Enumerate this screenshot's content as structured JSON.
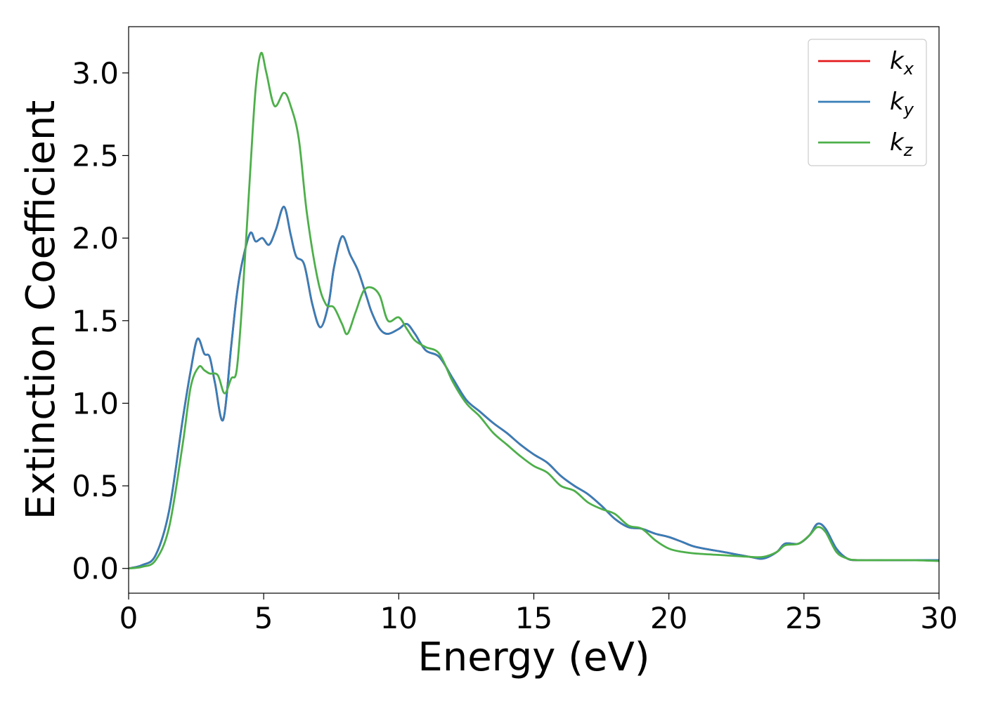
{
  "chart_data": {
    "type": "line",
    "xlabel": "Energy (eV)",
    "ylabel": "Extinction Coefficient",
    "xlim": [
      0,
      30
    ],
    "ylim": [
      -0.15,
      3.28
    ],
    "xticks": [
      0,
      5,
      10,
      15,
      20,
      25,
      30
    ],
    "xtick_labels": [
      "0",
      "5",
      "10",
      "15",
      "20",
      "25",
      "30"
    ],
    "yticks": [
      0.0,
      0.5,
      1.0,
      1.5,
      2.0,
      2.5,
      3.0
    ],
    "ytick_labels": [
      "0.0",
      "0.5",
      "1.0",
      "1.5",
      "2.0",
      "2.5",
      "3.0"
    ],
    "grid": false,
    "legend_position": "top-right",
    "series": [
      {
        "name": "k",
        "subscript": "x",
        "color": "#e41a1c",
        "x": [
          0,
          0.5,
          1.0,
          1.5,
          2.0,
          2.3,
          2.55,
          2.8,
          3.0,
          3.2,
          3.5,
          3.8,
          4.0,
          4.2,
          4.5,
          4.7,
          4.95,
          5.2,
          5.45,
          5.75,
          6.0,
          6.2,
          6.5,
          6.8,
          7.1,
          7.4,
          7.6,
          7.9,
          8.2,
          8.5,
          8.8,
          9.0,
          9.3,
          9.6,
          10.0,
          10.3,
          10.6,
          11.0,
          11.5,
          12.0,
          12.5,
          13.0,
          13.5,
          14.0,
          14.5,
          15.0,
          15.5,
          16.0,
          16.5,
          17.0,
          17.5,
          18.0,
          18.5,
          19.0,
          19.5,
          20.0,
          20.5,
          21.0,
          22.0,
          23.0,
          23.5,
          24.0,
          24.3,
          24.8,
          25.2,
          25.5,
          25.8,
          26.2,
          26.6,
          27.0,
          28.0,
          29.0,
          30.0
        ],
        "y": [
          0.0,
          0.02,
          0.08,
          0.35,
          0.9,
          1.2,
          1.39,
          1.3,
          1.28,
          1.12,
          0.9,
          1.35,
          1.65,
          1.85,
          2.03,
          1.98,
          2.0,
          1.96,
          2.05,
          2.19,
          2.02,
          1.89,
          1.84,
          1.6,
          1.46,
          1.6,
          1.82,
          2.01,
          1.9,
          1.8,
          1.65,
          1.55,
          1.45,
          1.42,
          1.45,
          1.48,
          1.42,
          1.32,
          1.28,
          1.15,
          1.02,
          0.95,
          0.88,
          0.82,
          0.75,
          0.69,
          0.64,
          0.56,
          0.5,
          0.45,
          0.38,
          0.3,
          0.25,
          0.24,
          0.21,
          0.19,
          0.16,
          0.13,
          0.1,
          0.07,
          0.06,
          0.1,
          0.15,
          0.15,
          0.2,
          0.27,
          0.24,
          0.12,
          0.06,
          0.05,
          0.05,
          0.05,
          0.05
        ]
      },
      {
        "name": "k",
        "subscript": "y",
        "color": "#377eb8",
        "x": [
          0,
          0.5,
          1.0,
          1.5,
          2.0,
          2.3,
          2.55,
          2.8,
          3.0,
          3.2,
          3.5,
          3.8,
          4.0,
          4.2,
          4.5,
          4.7,
          4.95,
          5.2,
          5.45,
          5.75,
          6.0,
          6.2,
          6.5,
          6.8,
          7.1,
          7.4,
          7.6,
          7.9,
          8.2,
          8.5,
          8.8,
          9.0,
          9.3,
          9.6,
          10.0,
          10.3,
          10.6,
          11.0,
          11.5,
          12.0,
          12.5,
          13.0,
          13.5,
          14.0,
          14.5,
          15.0,
          15.5,
          16.0,
          16.5,
          17.0,
          17.5,
          18.0,
          18.5,
          19.0,
          19.5,
          20.0,
          20.5,
          21.0,
          22.0,
          23.0,
          23.5,
          24.0,
          24.3,
          24.8,
          25.2,
          25.5,
          25.8,
          26.2,
          26.6,
          27.0,
          28.0,
          29.0,
          30.0
        ],
        "y": [
          0.0,
          0.02,
          0.08,
          0.35,
          0.9,
          1.2,
          1.39,
          1.3,
          1.28,
          1.12,
          0.9,
          1.35,
          1.65,
          1.85,
          2.03,
          1.98,
          2.0,
          1.96,
          2.05,
          2.19,
          2.02,
          1.89,
          1.84,
          1.6,
          1.46,
          1.6,
          1.82,
          2.01,
          1.9,
          1.8,
          1.65,
          1.55,
          1.45,
          1.42,
          1.45,
          1.48,
          1.42,
          1.32,
          1.28,
          1.15,
          1.02,
          0.95,
          0.88,
          0.82,
          0.75,
          0.69,
          0.64,
          0.56,
          0.5,
          0.45,
          0.38,
          0.3,
          0.25,
          0.24,
          0.21,
          0.19,
          0.16,
          0.13,
          0.1,
          0.07,
          0.06,
          0.1,
          0.15,
          0.15,
          0.2,
          0.27,
          0.24,
          0.12,
          0.06,
          0.05,
          0.05,
          0.05,
          0.05
        ]
      },
      {
        "name": "k",
        "subscript": "z",
        "color": "#4daf4a",
        "x": [
          0,
          0.5,
          1.0,
          1.5,
          2.0,
          2.3,
          2.6,
          2.8,
          3.0,
          3.3,
          3.55,
          3.8,
          4.0,
          4.2,
          4.5,
          4.7,
          4.9,
          5.1,
          5.4,
          5.75,
          6.0,
          6.3,
          6.6,
          7.0,
          7.3,
          7.6,
          7.9,
          8.1,
          8.4,
          8.7,
          9.0,
          9.3,
          9.6,
          10.0,
          10.3,
          10.6,
          11.0,
          11.5,
          12.0,
          12.5,
          13.0,
          13.5,
          14.0,
          14.5,
          15.0,
          15.5,
          16.0,
          16.5,
          17.0,
          17.5,
          18.0,
          18.5,
          19.0,
          19.5,
          20.0,
          20.5,
          21.0,
          22.0,
          23.0,
          23.5,
          24.0,
          24.3,
          24.8,
          25.2,
          25.5,
          25.8,
          26.2,
          26.6,
          27.0,
          28.0,
          29.0,
          30.0
        ],
        "y": [
          0.0,
          0.01,
          0.05,
          0.25,
          0.75,
          1.1,
          1.22,
          1.2,
          1.18,
          1.17,
          1.06,
          1.15,
          1.2,
          1.6,
          2.4,
          2.9,
          3.12,
          3.0,
          2.8,
          2.88,
          2.8,
          2.6,
          2.15,
          1.75,
          1.6,
          1.58,
          1.48,
          1.42,
          1.55,
          1.68,
          1.7,
          1.65,
          1.5,
          1.52,
          1.45,
          1.38,
          1.34,
          1.3,
          1.13,
          1.0,
          0.92,
          0.82,
          0.75,
          0.68,
          0.62,
          0.58,
          0.5,
          0.47,
          0.4,
          0.36,
          0.33,
          0.26,
          0.24,
          0.17,
          0.12,
          0.1,
          0.09,
          0.08,
          0.07,
          0.07,
          0.1,
          0.14,
          0.15,
          0.2,
          0.25,
          0.22,
          0.1,
          0.06,
          0.05,
          0.05,
          0.05,
          0.045
        ]
      }
    ]
  }
}
